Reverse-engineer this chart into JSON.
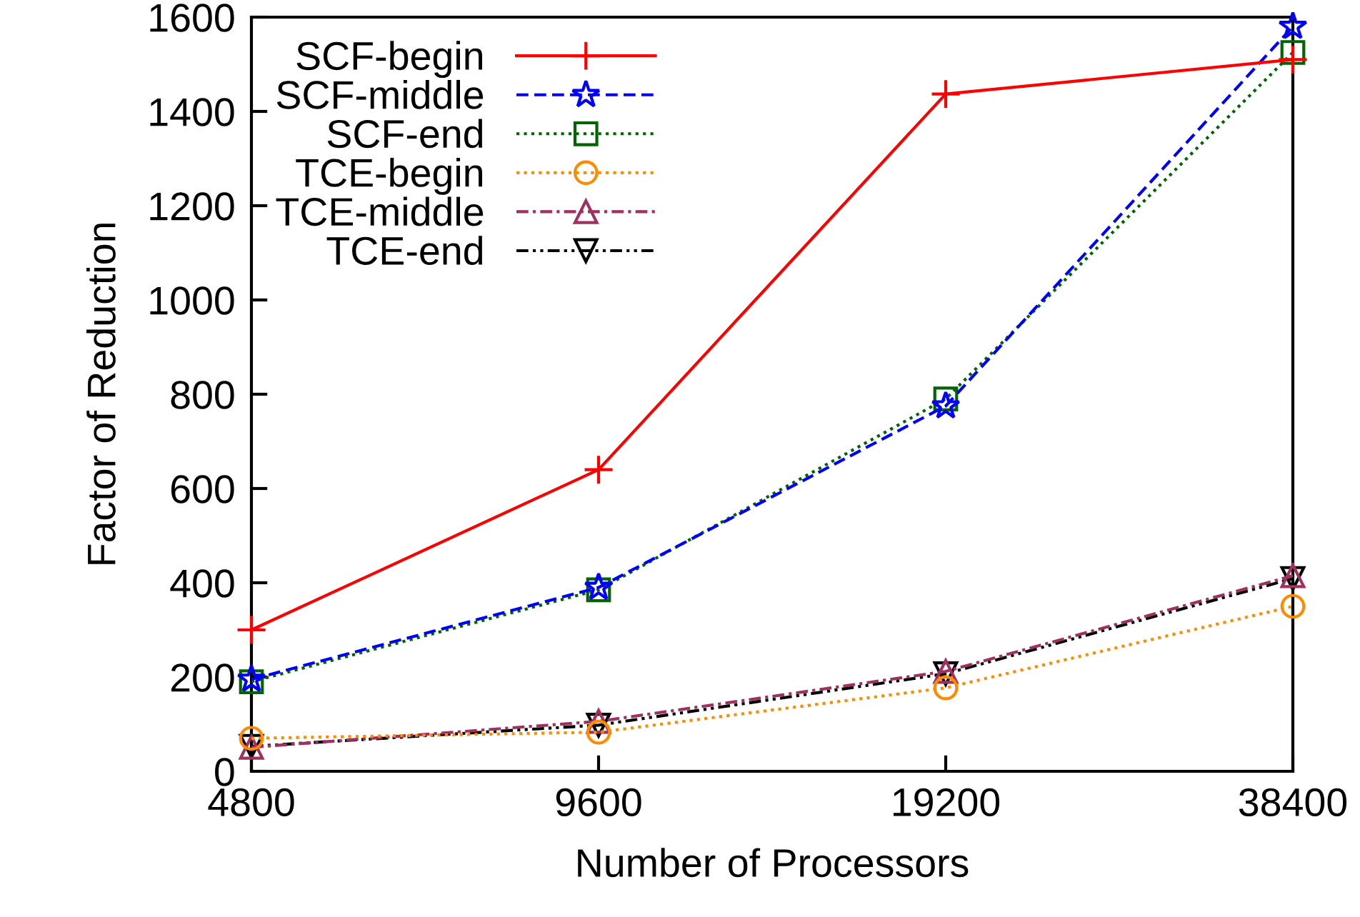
{
  "chart_data": {
    "type": "line",
    "xlabel": "Number of Processors",
    "ylabel": "Factor of Reduction",
    "categories": [
      "4800",
      "9600",
      "19200",
      "38400"
    ],
    "ylim": [
      0,
      1600
    ],
    "yticks": [
      0,
      200,
      400,
      600,
      800,
      1000,
      1200,
      1400,
      1600
    ],
    "grid": false,
    "legend": "top left",
    "series": [
      {
        "name": "SCF-begin",
        "color": "#ff0000",
        "marker": "cross",
        "line_style": "solid",
        "values": [
          300,
          640,
          1437,
          1510
        ]
      },
      {
        "name": "SCF-middle",
        "color": "#0000ff",
        "marker": "star",
        "line_style": "dashed",
        "values": [
          195,
          390,
          775,
          1580
        ]
      },
      {
        "name": "SCF-end",
        "color": "#006400",
        "marker": "square",
        "line_style": "dotted",
        "values": [
          190,
          385,
          790,
          1525
        ]
      },
      {
        "name": "TCE-begin",
        "color": "#ff8c00",
        "marker": "circle",
        "line_style": "dotted",
        "values": [
          70,
          83,
          177,
          350
        ]
      },
      {
        "name": "TCE-middle",
        "color": "#a0305f",
        "marker": "triangle",
        "line_style": "dashdot",
        "values": [
          51,
          106,
          212,
          415
        ]
      },
      {
        "name": "TCE-end",
        "color": "#000000",
        "marker": "triangle_down",
        "line_style": "dashdotdot",
        "values": [
          53,
          98,
          207,
          409
        ]
      }
    ]
  }
}
